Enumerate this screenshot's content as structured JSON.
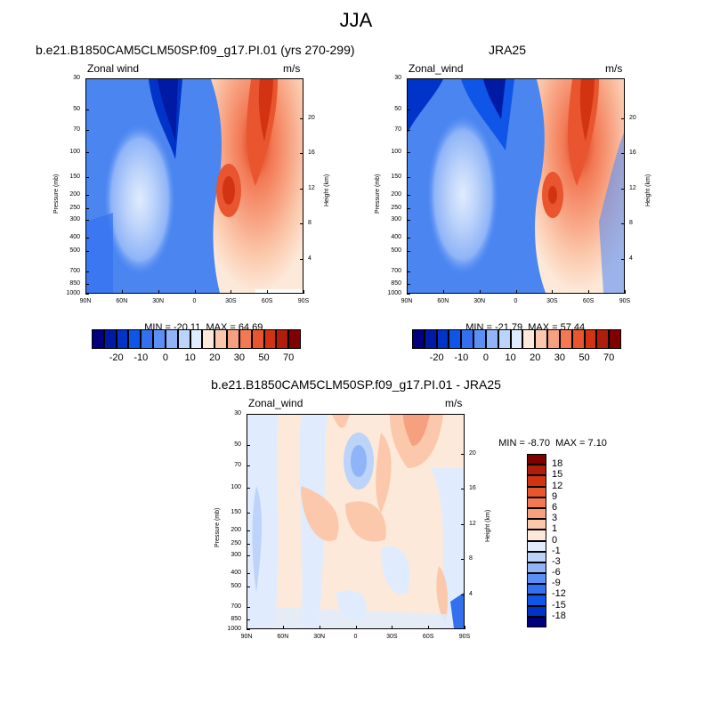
{
  "page_title": "JJA",
  "chart_data": [
    {
      "type": "heatmap",
      "title": "b.e21.B1850CAM5CLM50SP.f09_g17.PI.01 (yrs 270-299)",
      "variable_label": "Zonal wind",
      "units": "m/s",
      "xlabel": "",
      "ylabel": "Pressure (mb)",
      "ylabel_right": "Height (km)",
      "x_ticks": [
        "90N",
        "60N",
        "30N",
        "0",
        "30S",
        "60S",
        "90S"
      ],
      "y_ticks": [
        "30",
        "50",
        "70",
        "100",
        "150",
        "200",
        "250",
        "300",
        "400",
        "500",
        "700",
        "850",
        "1000"
      ],
      "y_ticks_right": [
        "20",
        "16",
        "12",
        "8",
        "4"
      ],
      "stats": {
        "min_label": "MIN = ",
        "min": "-20.11",
        "max_label": "MAX = ",
        "max": "64.69"
      },
      "colorbar": {
        "orientation": "horizontal",
        "tick_labels": [
          "-20",
          "-10",
          "0",
          "10",
          "20",
          "30",
          "50",
          "70"
        ],
        "colors": [
          "#00007f",
          "#001aa4",
          "#0033c8",
          "#0f55e8",
          "#3370f0",
          "#5a90f5",
          "#8fb4f7",
          "#bcd3fa",
          "#e0ecfd",
          "#fde9d9",
          "#fbc8ac",
          "#f7a07f",
          "#f37955",
          "#e8552e",
          "#d23413",
          "#b01d0a",
          "#800000"
        ]
      },
      "features": {
        "jet_max_lat": "45S",
        "jet_max_p": 30,
        "secondary_max_lat": "30S",
        "secondary_max_p": 200,
        "easterly_min_lat": "20N",
        "easterly_min_p": 30,
        "westerly_nh_lat": "40N",
        "westerly_nh_p": 200
      }
    },
    {
      "type": "heatmap",
      "title": "JRA25",
      "variable_label": "Zonal_wind",
      "units": "m/s",
      "xlabel": "",
      "ylabel": "Pressure (mb)",
      "ylabel_right": "Height (km)",
      "x_ticks": [
        "90N",
        "60N",
        "30N",
        "0",
        "30S",
        "60S",
        "90S"
      ],
      "y_ticks": [
        "30",
        "50",
        "70",
        "100",
        "150",
        "200",
        "250",
        "300",
        "400",
        "500",
        "700",
        "850",
        "1000"
      ],
      "y_ticks_right": [
        "20",
        "16",
        "12",
        "8",
        "4"
      ],
      "stats": {
        "min_label": "MIN = ",
        "min": "-21.79",
        "max_label": "MAX = ",
        "max": "57.44"
      },
      "colorbar": {
        "orientation": "horizontal",
        "tick_labels": [
          "-20",
          "-10",
          "0",
          "10",
          "20",
          "30",
          "50",
          "70"
        ],
        "colors": [
          "#00007f",
          "#001aa4",
          "#0033c8",
          "#0f55e8",
          "#3370f0",
          "#5a90f5",
          "#8fb4f7",
          "#bcd3fa",
          "#e0ecfd",
          "#fde9d9",
          "#fbc8ac",
          "#f7a07f",
          "#f37955",
          "#e8552e",
          "#d23413",
          "#b01d0a",
          "#800000"
        ]
      },
      "features": {
        "jet_max_lat": "45S",
        "jet_max_p": 30,
        "secondary_max_lat": "30S",
        "secondary_max_p": 200,
        "easterly_min_lat": "15N",
        "easterly_min_p": 30,
        "westerly_nh_lat": "40N",
        "westerly_nh_p": 200
      }
    },
    {
      "type": "heatmap",
      "title": "b.e21.B1850CAM5CLM50SP.f09_g17.PI.01 - JRA25",
      "variable_label": "Zonal_wind",
      "units": "m/s",
      "xlabel": "",
      "ylabel": "Pressure (mb)",
      "ylabel_right": "Height (km)",
      "x_ticks": [
        "90N",
        "60N",
        "30N",
        "0",
        "30S",
        "60S",
        "90S"
      ],
      "y_ticks": [
        "30",
        "50",
        "70",
        "100",
        "150",
        "200",
        "250",
        "300",
        "400",
        "500",
        "700",
        "850",
        "1000"
      ],
      "y_ticks_right": [
        "20",
        "16",
        "12",
        "8",
        "4"
      ],
      "stats": {
        "min_label": "MIN = ",
        "min": "-8.70",
        "max_label": "MAX = ",
        "max": "7.10"
      },
      "colorbar": {
        "orientation": "vertical",
        "tick_labels": [
          "18",
          "15",
          "12",
          "9",
          "6",
          "3",
          "1",
          "0",
          "-1",
          "-3",
          "-6",
          "-9",
          "-12",
          "-15",
          "-18"
        ],
        "colors": [
          "#800000",
          "#b01d0a",
          "#d23413",
          "#e8552e",
          "#f37955",
          "#f7a07f",
          "#fbc8ac",
          "#fde9d9",
          "#e0ecfd",
          "#bcd3fa",
          "#8fb4f7",
          "#5a90f5",
          "#3370f0",
          "#0f55e8",
          "#0033c8",
          "#00007f"
        ]
      }
    }
  ]
}
